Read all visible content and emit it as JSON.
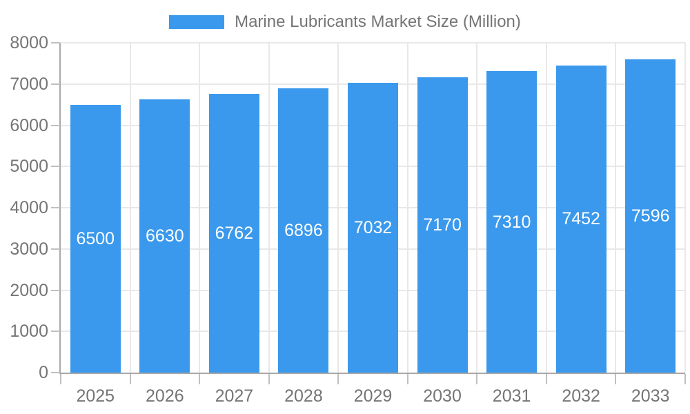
{
  "legend": {
    "label": "Marine Lubricants Market Size (Million)"
  },
  "chart_data": {
    "type": "bar",
    "title": "Marine Lubricants Market Size (Million)",
    "categories": [
      "2025",
      "2026",
      "2027",
      "2028",
      "2029",
      "2030",
      "2031",
      "2032",
      "2033"
    ],
    "values": [
      6500,
      6630,
      6762,
      6896,
      7032,
      7170,
      7310,
      7452,
      7596
    ],
    "xlabel": "",
    "ylabel": "",
    "ylim": [
      0,
      8000
    ],
    "ytick_step": 1000,
    "ytick_labels": [
      "0",
      "1000",
      "2000",
      "3000",
      "4000",
      "5000",
      "6000",
      "7000",
      "8000"
    ],
    "grid": true,
    "legend_position": "top-center",
    "value_label_position": "inside-middle",
    "colors": {
      "bar": "#3a99ec",
      "axis_text": "#757575",
      "value_text": "#ffffff",
      "gridline": "#e8e8e8",
      "axis_line": "#a8a8a8",
      "tick": "#c0c0c0",
      "background": "#ffffff"
    }
  }
}
